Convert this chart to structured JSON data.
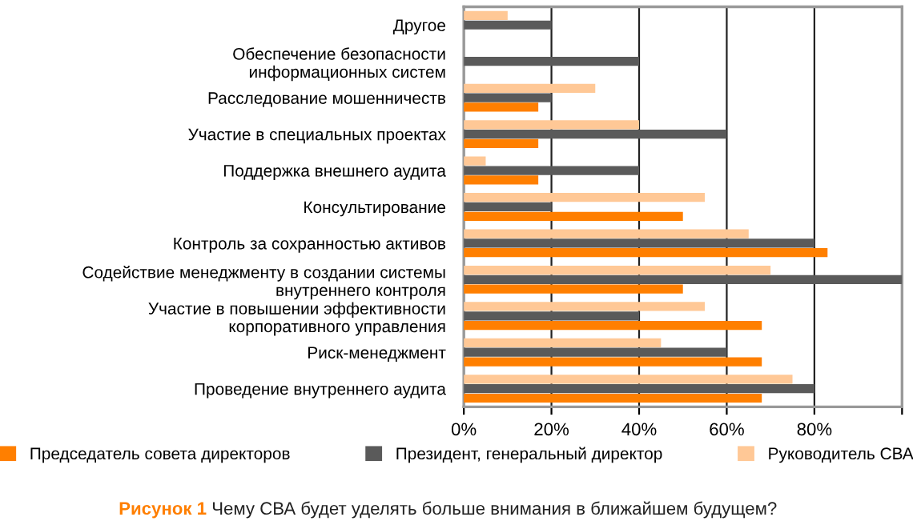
{
  "chart_data": {
    "type": "bar",
    "orientation": "horizontal",
    "categories": [
      "Другое",
      "Обеспечение безопасности\nинформационных систем",
      "Расследование мошенничеств",
      "Участие в специальных проектах",
      "Поддержка внешнего аудита",
      "Консультирование",
      "Контроль за сохранностью активов",
      "Содействие менеджменту в создании системы\nвнутреннего контроля",
      "Участие в повышении эффективности\nкорпоративного управления",
      "Риск-менеджмент",
      "Проведение внутреннего аудита"
    ],
    "series": [
      {
        "name": "Председатель совета директоров",
        "color": "#ff7f00",
        "values": [
          null,
          null,
          17,
          17,
          17,
          50,
          83,
          50,
          68,
          68,
          68
        ]
      },
      {
        "name": "Президент, генеральный директор",
        "color": "#5a5a5a",
        "values": [
          20,
          40,
          20,
          60,
          40,
          20,
          80,
          100,
          40,
          60,
          80
        ]
      },
      {
        "name": "Руководитель СВА",
        "color": "#ffc896",
        "values": [
          10,
          null,
          30,
          40,
          5,
          55,
          65,
          70,
          55,
          45,
          75
        ]
      }
    ],
    "xlim": [
      0,
      100
    ],
    "xticks": [
      {
        "value": 0,
        "label": "0%"
      },
      {
        "value": 20,
        "label": "20%"
      },
      {
        "value": 40,
        "label": "40%"
      },
      {
        "value": 60,
        "label": "60%"
      },
      {
        "value": 80,
        "label": "80%"
      },
      {
        "value": 100,
        "label": null
      }
    ],
    "grid": "x",
    "legend": "bottom",
    "annotations": [
      "Рисунок 1",
      "Чему СВА будет уделять больше внимания в ближайшем будущем?"
    ]
  }
}
